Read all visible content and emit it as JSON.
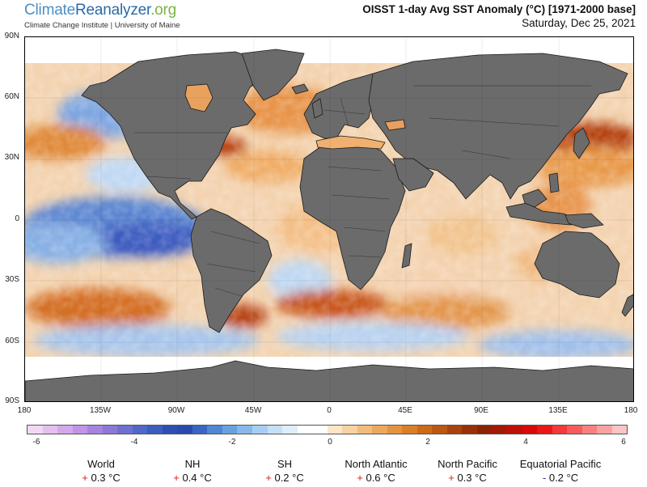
{
  "header": {
    "brand_part1": "Climate",
    "brand_part2": "Reanalyzer",
    "brand_tld": ".org",
    "subtitle": "Climate Change Institute | University of Maine",
    "title": "OISST 1-day Avg SST Anomaly (°C) [1971-2000 base]",
    "date": "Saturday, Dec 25, 2021"
  },
  "map": {
    "lat_labels": [
      "90N",
      "60N",
      "30N",
      "0",
      "30S",
      "60S",
      "90S"
    ],
    "lon_labels": [
      "180",
      "135W",
      "90W",
      "45W",
      "0",
      "45E",
      "90E",
      "135E",
      "180"
    ],
    "land_color": "#6b6b6b",
    "land_outline": "#1a1a1a",
    "ice_color": "#ffffff"
  },
  "colorbar": {
    "tick_labels": [
      "-6",
      "-4",
      "-2",
      "0",
      "2",
      "4",
      "6"
    ],
    "range": [
      -6,
      6
    ],
    "colors": [
      "#f2d8f2",
      "#e4c0ee",
      "#d4a8ea",
      "#c094e6",
      "#a884de",
      "#8c78d6",
      "#6e70d0",
      "#5068c8",
      "#3c5cc0",
      "#2e4eb4",
      "#2a48b0",
      "#3a64c4",
      "#5286d4",
      "#6aa0e0",
      "#88b8ea",
      "#a6cef2",
      "#c4e0f6",
      "#dfeefa",
      "#ffffff",
      "#ffffff",
      "#fbe6c8",
      "#f7d2a2",
      "#f2bc7c",
      "#eca85c",
      "#e4943e",
      "#da7e28",
      "#cc6a18",
      "#bc5612",
      "#aa420e",
      "#9a300a",
      "#8c2208",
      "#a41808",
      "#be1008",
      "#d60a08",
      "#e81818",
      "#f23a3a",
      "#f65c5c",
      "#f88080",
      "#faa2a2",
      "#fcc4c4"
    ]
  },
  "stats": [
    {
      "label": "World",
      "sign": "+",
      "value": "0.3 °C"
    },
    {
      "label": "NH",
      "sign": "+",
      "value": "0.4 °C"
    },
    {
      "label": "SH",
      "sign": "+",
      "value": "0.2 °C"
    },
    {
      "label": "North Atlantic",
      "sign": "+",
      "value": "0.6 °C"
    },
    {
      "label": "North Pacific",
      "sign": "+",
      "value": "0.3 °C"
    },
    {
      "label": "Equatorial Pacific",
      "sign": "-",
      "value": "0.2 °C"
    }
  ]
}
